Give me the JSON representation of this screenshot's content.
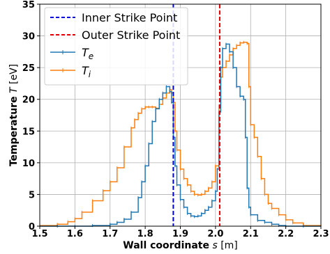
{
  "chart_data": {
    "type": "line",
    "xlabel_bold": "Wall coordinate",
    "xlabel_sym": "s",
    "xlabel_unit": "[m]",
    "ylabel_bold": "Temperature",
    "ylabel_sym": "T",
    "ylabel_unit": "[eV]",
    "xlim": [
      1.5,
      2.3
    ],
    "ylim": [
      0,
      35
    ],
    "xticks": [
      "1.5",
      "1.6",
      "1.7",
      "1.8",
      "1.9",
      "2.0",
      "2.1",
      "2.2",
      "2.3"
    ],
    "yticks": [
      "0",
      "5",
      "10",
      "15",
      "20",
      "25",
      "30",
      "35"
    ],
    "grid": true,
    "legend_position": "top-left",
    "vlines": [
      {
        "name": "Inner Strike Point",
        "x": 1.88,
        "color": "#0000cc",
        "style": "dashed"
      },
      {
        "name": "Outer Strike Point",
        "x": 2.012,
        "color": "#dd0000",
        "style": "dashed"
      }
    ],
    "series": [
      {
        "name": "T",
        "subscript": "e",
        "color": "#1f77b4",
        "x": [
          1.5,
          1.55,
          1.6,
          1.65,
          1.7,
          1.72,
          1.74,
          1.76,
          1.78,
          1.79,
          1.8,
          1.81,
          1.82,
          1.83,
          1.84,
          1.85,
          1.86,
          1.87,
          1.875,
          1.88,
          1.885,
          1.89,
          1.9,
          1.91,
          1.92,
          1.93,
          1.94,
          1.95,
          1.96,
          1.97,
          1.98,
          1.99,
          2.0,
          2.005,
          2.01,
          2.015,
          2.02,
          2.03,
          2.04,
          2.05,
          2.06,
          2.07,
          2.08,
          2.085,
          2.09,
          2.095,
          2.1,
          2.12,
          2.14,
          2.16,
          2.18,
          2.2,
          2.25,
          2.3
        ],
        "y": [
          0.0,
          0.0,
          0.0,
          0.1,
          0.3,
          0.6,
          1.1,
          2.2,
          4.5,
          7.0,
          9.5,
          13.0,
          16.5,
          18.5,
          20.0,
          21.0,
          22.0,
          21.2,
          19.5,
          14.0,
          9.5,
          6.5,
          4.2,
          3.0,
          2.0,
          1.6,
          1.5,
          1.6,
          2.0,
          2.5,
          3.0,
          4.0,
          5.5,
          9.0,
          18.0,
          25.0,
          28.0,
          28.7,
          27.5,
          25.0,
          22.0,
          20.5,
          20.0,
          14.0,
          6.0,
          3.0,
          1.8,
          0.9,
          0.6,
          0.3,
          0.1,
          0.0,
          0.0,
          0.0
        ]
      },
      {
        "name": "T",
        "subscript": "i",
        "color": "#ff7f0e",
        "x": [
          1.5,
          1.55,
          1.58,
          1.6,
          1.62,
          1.65,
          1.68,
          1.7,
          1.72,
          1.74,
          1.76,
          1.77,
          1.78,
          1.79,
          1.8,
          1.81,
          1.82,
          1.83,
          1.84,
          1.85,
          1.86,
          1.87,
          1.875,
          1.88,
          1.885,
          1.89,
          1.9,
          1.91,
          1.92,
          1.93,
          1.94,
          1.95,
          1.96,
          1.97,
          1.98,
          1.99,
          2.0,
          2.01,
          2.015,
          2.02,
          2.03,
          2.04,
          2.05,
          2.06,
          2.07,
          2.08,
          2.09,
          2.095,
          2.1,
          2.11,
          2.12,
          2.13,
          2.14,
          2.15,
          2.16,
          2.18,
          2.2,
          2.22,
          2.25,
          2.3
        ],
        "y": [
          0.1,
          0.3,
          0.7,
          1.2,
          2.2,
          4.0,
          5.6,
          7.0,
          9.2,
          12.5,
          15.5,
          16.8,
          17.8,
          18.5,
          18.8,
          18.8,
          18.8,
          18.6,
          19.2,
          20.2,
          21.0,
          21.5,
          21.0,
          19.5,
          15.0,
          12.0,
          9.0,
          7.5,
          6.5,
          5.5,
          5.0,
          4.9,
          5.0,
          5.5,
          6.0,
          7.0,
          9.5,
          19.0,
          23.5,
          25.0,
          26.0,
          27.0,
          28.0,
          28.5,
          28.9,
          29.0,
          28.8,
          22.0,
          16.0,
          14.0,
          11.0,
          7.5,
          5.0,
          3.6,
          2.8,
          1.8,
          1.0,
          0.5,
          0.1,
          0.0
        ]
      }
    ]
  }
}
